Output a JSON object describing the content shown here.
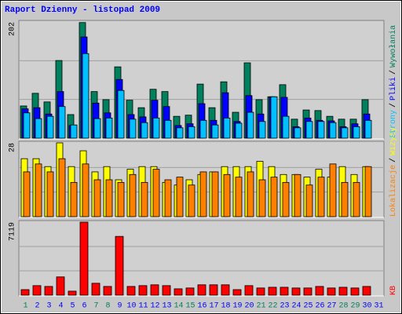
{
  "title": "Raport Dzienny -  listopad 2009",
  "legend_separator": "/",
  "chart_data": [
    {
      "type": "bar",
      "ylim": [
        0,
        202
      ],
      "yticks": [
        202
      ],
      "series": [
        {
          "name": "Wywołania",
          "color": "#00805c",
          "values": [
            56,
            78,
            63,
            135,
            41,
            201,
            81,
            67,
            124,
            66,
            53,
            85,
            81,
            38,
            40,
            94,
            53,
            98,
            45,
            131,
            67,
            72,
            93,
            33,
            49,
            48,
            38,
            33,
            33,
            67,
            null
          ]
        },
        {
          "name": "Pliki",
          "color": "#0000ff",
          "values": [
            51,
            53,
            42,
            81,
            22,
            176,
            61,
            44,
            102,
            41,
            37,
            66,
            55,
            22,
            25,
            60,
            31,
            79,
            29,
            74,
            42,
            72,
            71,
            20,
            35,
            31,
            30,
            20,
            25,
            42,
            null
          ]
        },
        {
          "name": "Strony",
          "color": "#00c0ff",
          "values": [
            44,
            34,
            38,
            55,
            23,
            147,
            34,
            35,
            83,
            33,
            27,
            35,
            31,
            18,
            20,
            31,
            23,
            35,
            26,
            45,
            29,
            72,
            38,
            18,
            29,
            29,
            27,
            18,
            20,
            31,
            null
          ]
        }
      ]
    },
    {
      "type": "bar",
      "ylim": [
        0,
        28
      ],
      "yticks": [
        28
      ],
      "series": [
        {
          "name": "Wizyty",
          "color": "#ffff00",
          "values": [
            22,
            22,
            19,
            28,
            19,
            25,
            17,
            19,
            14,
            18,
            19,
            19,
            13,
            12,
            14,
            16,
            17,
            19,
            19,
            19,
            21,
            19,
            16,
            16,
            15,
            18,
            15,
            19,
            16,
            19,
            null
          ]
        },
        {
          "name": "Lokalizacje",
          "color": "#ff8000",
          "values": [
            17,
            20,
            17,
            22,
            13,
            20,
            14,
            14,
            13,
            16,
            13,
            18,
            14,
            15,
            12,
            17,
            17,
            16,
            15,
            17,
            14,
            15,
            13,
            16,
            12,
            15,
            20,
            13,
            13,
            19,
            null
          ]
        }
      ]
    },
    {
      "type": "bar",
      "ylim": [
        0,
        7119
      ],
      "yticks": [
        7119
      ],
      "series": [
        {
          "name": "KB",
          "color": "#ff0000",
          "values": [
            540,
            930,
            850,
            1780,
            390,
            7119,
            1160,
            850,
            5730,
            850,
            930,
            1010,
            930,
            620,
            700,
            1010,
            1010,
            1010,
            540,
            930,
            700,
            770,
            770,
            700,
            700,
            850,
            700,
            770,
            700,
            850,
            null
          ]
        }
      ],
      "categories": [
        "1",
        "2",
        "3",
        "4",
        "5",
        "6",
        "7",
        "8",
        "9",
        "10",
        "11",
        "12",
        "13",
        "14",
        "15",
        "16",
        "17",
        "18",
        "19",
        "20",
        "21",
        "22",
        "23",
        "24",
        "25",
        "26",
        "27",
        "28",
        "29",
        "30",
        "31"
      ],
      "category_colors": [
        "#00805c",
        "#0000ff",
        "#0000ff",
        "#0000ff",
        "#0000ff",
        "#0000ff",
        "#00805c",
        "#00805c",
        "#0000ff",
        "#0000ff",
        "#0000ff",
        "#0000ff",
        "#0000ff",
        "#00805c",
        "#00805c",
        "#0000ff",
        "#0000ff",
        "#0000ff",
        "#0000ff",
        "#0000ff",
        "#00805c",
        "#00805c",
        "#0000ff",
        "#0000ff",
        "#0000ff",
        "#0000ff",
        "#0000ff",
        "#00805c",
        "#00805c",
        "#0000ff",
        "#0000ff"
      ]
    }
  ]
}
